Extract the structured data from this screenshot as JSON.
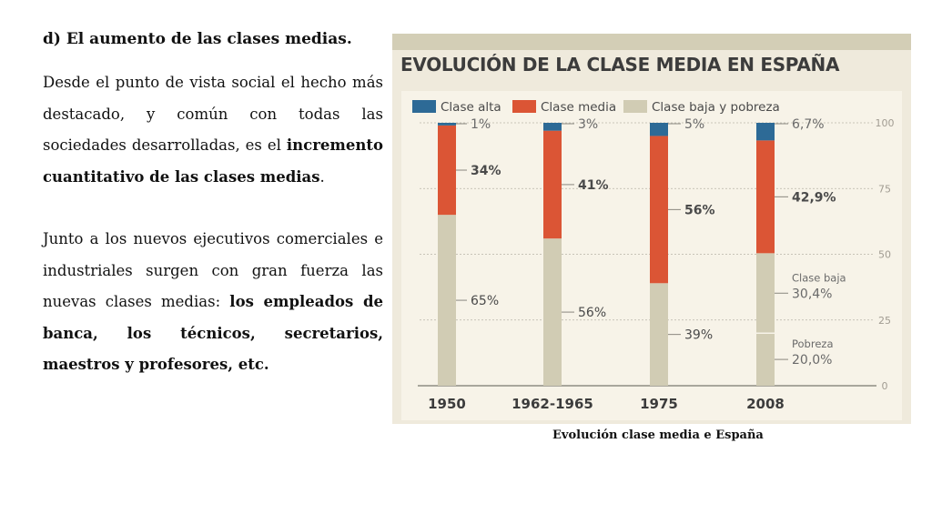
{
  "slide": {
    "heading": "d) El aumento de las clases medias.",
    "para1": {
      "a": "Desde el punto de vista social el hecho más destacado, y común con todas las sociedades desarrolladas, es el ",
      "b": "incremento cuantitativo de las clases medias",
      "c": "."
    },
    "para2": {
      "a": "Junto a los nuevos ejecutivos comerciales e industriales surgen con gran fuerza las nuevas clases medias: ",
      "b": "los empleados de banca, los técnicos, secretarios, maestros y profesores, etc."
    },
    "caption": "Evolución clase media e España"
  },
  "chart_data": {
    "type": "bar",
    "stacked": true,
    "title": "EVOLUCIÓN DE LA CLASE MEDIA EN ESPAÑA",
    "categories": [
      "1950",
      "1962-1965",
      "1975",
      "2008"
    ],
    "series": [
      {
        "name": "Clase baja y pobreza",
        "color": "#d1ccb4",
        "values": [
          65,
          56,
          39,
          50.4
        ],
        "labels": [
          "65%",
          "56%",
          "39%",
          ""
        ]
      },
      {
        "name": "Clase media",
        "color": "#db5535",
        "values": [
          34,
          41,
          56,
          42.9
        ],
        "labels": [
          "34%",
          "41%",
          "56%",
          "42,9%"
        ]
      },
      {
        "name": "Clase alta",
        "color": "#2d6a96",
        "values": [
          1,
          3,
          5,
          6.7
        ],
        "labels": [
          "1%",
          "3%",
          "5%",
          "6,7%"
        ]
      }
    ],
    "subdivision_2008": [
      {
        "name": "Pobreza",
        "value": 20.0,
        "label": "20,0%"
      },
      {
        "name": "Clase baja",
        "value": 30.4,
        "label": "30,4%"
      }
    ],
    "legend_order": [
      "Clase alta",
      "Clase media",
      "Clase baja y pobreza"
    ],
    "yticks": [
      "0",
      "25",
      "50",
      "75",
      "100"
    ],
    "ylim": [
      0,
      100
    ],
    "grid": true,
    "legend_position": "top-left"
  }
}
